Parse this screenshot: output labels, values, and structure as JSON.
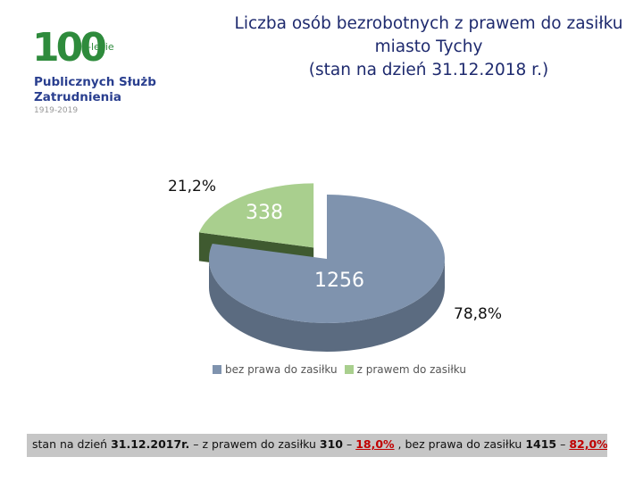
{
  "logo": {
    "number": "100",
    "suffix": "-lecie",
    "line1": "Publicznych Służb",
    "line2": "Zatrudnienia",
    "years": "1919-2019"
  },
  "title": {
    "line1": "Liczba osób bezrobotnych z prawem do zasiłku",
    "line2": "miasto Tychy",
    "line3": "(stan na dzień 31.12.2018 r.)"
  },
  "colors": {
    "bez_prawa": "#7f93ae",
    "z_prawem": "#a9cf8e"
  },
  "chart_data": {
    "type": "pie",
    "title": "",
    "categories": [
      "bez prawa do zasiłku",
      "z prawem do zasiłku"
    ],
    "values": [
      1256,
      338
    ],
    "percent_labels": [
      "78,8%",
      "21,2%"
    ],
    "value_labels": [
      "1256",
      "338"
    ],
    "legend": [
      "bez prawa do zasiłku",
      "z prawem do zasiłku"
    ],
    "legend_position": "bottom",
    "style": "3d"
  },
  "footer": {
    "prefix": "stan na dzień ",
    "date": "31.12.2017r.",
    "mid1": " – z prawem do zasiłku ",
    "z_value": "310",
    "dash1": " – ",
    "z_pct": "18,0%",
    "mid2": " , bez prawa do zasiłku ",
    "b_value": "1415",
    "dash2": " – ",
    "b_pct": "82,0%"
  }
}
